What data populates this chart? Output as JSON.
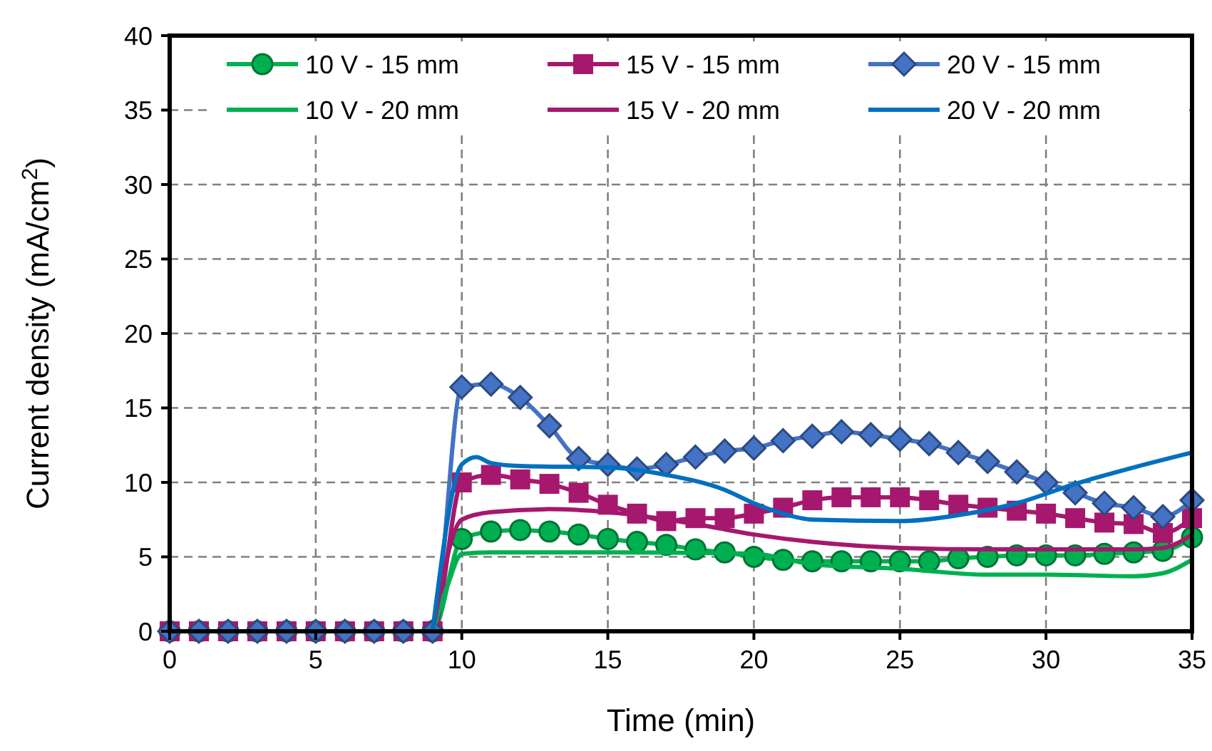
{
  "chart_data": {
    "type": "line",
    "xlabel": "Time (min)",
    "ylabel": "Current density (mA/cm$^{2}$)",
    "xlim": [
      0,
      35
    ],
    "ylim": [
      0,
      40
    ],
    "xticks": [
      0,
      5,
      10,
      15,
      20,
      25,
      30,
      35
    ],
    "yticks": [
      0,
      5,
      10,
      15,
      20,
      25,
      30,
      35,
      40
    ],
    "grid": true,
    "legend": "top",
    "line_style": "solid",
    "series": [
      {
        "name": "10 V - 15 mm",
        "color": "#00b050",
        "marker": "circle",
        "x": [
          0,
          1,
          2,
          3,
          4,
          5,
          6,
          7,
          8,
          9,
          10,
          11,
          12,
          13,
          14,
          15,
          16,
          17,
          18,
          19,
          20,
          21,
          22,
          23,
          24,
          25,
          26,
          27,
          28,
          29,
          30,
          31,
          32,
          33,
          34,
          35
        ],
        "values": [
          0,
          0,
          0,
          0,
          0,
          0,
          0,
          0,
          0,
          0,
          6.2,
          6.7,
          6.8,
          6.7,
          6.5,
          6.2,
          6.0,
          5.8,
          5.5,
          5.3,
          5.0,
          4.8,
          4.7,
          4.7,
          4.7,
          4.7,
          4.7,
          4.9,
          5.0,
          5.1,
          5.1,
          5.1,
          5.2,
          5.3,
          5.4,
          6.3
        ]
      },
      {
        "name": "15 V - 15 mm",
        "color": "#a5186e",
        "marker": "square",
        "x": [
          0,
          1,
          2,
          3,
          4,
          5,
          6,
          7,
          8,
          9,
          10,
          11,
          12,
          13,
          14,
          15,
          16,
          17,
          18,
          19,
          20,
          21,
          22,
          23,
          24,
          25,
          26,
          27,
          28,
          29,
          30,
          31,
          32,
          33,
          34,
          35
        ],
        "values": [
          0,
          0,
          0,
          0,
          0,
          0,
          0,
          0,
          0,
          0,
          10.0,
          10.5,
          10.2,
          9.9,
          9.3,
          8.5,
          7.9,
          7.4,
          7.6,
          7.6,
          7.9,
          8.3,
          8.8,
          9.0,
          9.0,
          9.0,
          8.8,
          8.5,
          8.3,
          8.1,
          7.9,
          7.6,
          7.3,
          7.2,
          6.6,
          7.6
        ]
      },
      {
        "name": "20 V - 15 mm",
        "color": "#4472c4",
        "marker": "diamond",
        "x": [
          0,
          1,
          2,
          3,
          4,
          5,
          6,
          7,
          8,
          9,
          10,
          11,
          12,
          13,
          14,
          15,
          16,
          17,
          18,
          19,
          20,
          21,
          22,
          23,
          24,
          25,
          26,
          27,
          28,
          29,
          30,
          31,
          32,
          33,
          34,
          35
        ],
        "values": [
          0,
          0,
          0,
          0,
          0,
          0,
          0,
          0,
          0,
          0,
          16.4,
          16.6,
          15.7,
          13.8,
          11.6,
          11.2,
          10.9,
          11.2,
          11.7,
          12.1,
          12.3,
          12.8,
          13.1,
          13.4,
          13.2,
          12.9,
          12.6,
          12.0,
          11.4,
          10.7,
          10.0,
          9.3,
          8.6,
          8.3,
          7.7,
          8.8
        ]
      },
      {
        "name": "10 V - 20 mm",
        "color": "#00b050",
        "marker": "none",
        "x": [
          9,
          9.5,
          10,
          11,
          15,
          20,
          22,
          25,
          28,
          30,
          33,
          34,
          35
        ],
        "values": [
          0,
          3,
          5.2,
          5.3,
          5.3,
          5.2,
          4.5,
          4.2,
          3.8,
          3.8,
          3.7,
          3.9,
          4.8
        ]
      },
      {
        "name": "15 V - 20 mm",
        "color": "#a5186e",
        "marker": "none",
        "x": [
          9,
          10,
          11,
          13,
          15,
          18,
          20,
          22,
          25,
          28,
          30,
          33,
          34,
          35
        ],
        "values": [
          0,
          7.5,
          8.0,
          8.2,
          8.0,
          7.2,
          6.5,
          6.0,
          5.6,
          5.5,
          5.5,
          5.5,
          5.6,
          6.5
        ]
      },
      {
        "name": "20 V - 20 mm",
        "color": "#0070c0",
        "marker": "none",
        "x": [
          9,
          10,
          10.5,
          11,
          12,
          15,
          17,
          19,
          20,
          21,
          22,
          25,
          27,
          29,
          31,
          33,
          35
        ],
        "values": [
          0,
          11.2,
          11.7,
          11.3,
          11.1,
          11.0,
          10.5,
          9.5,
          8.6,
          7.9,
          7.5,
          7.4,
          7.8,
          8.6,
          9.9,
          11.0,
          12.0
        ]
      }
    ]
  }
}
